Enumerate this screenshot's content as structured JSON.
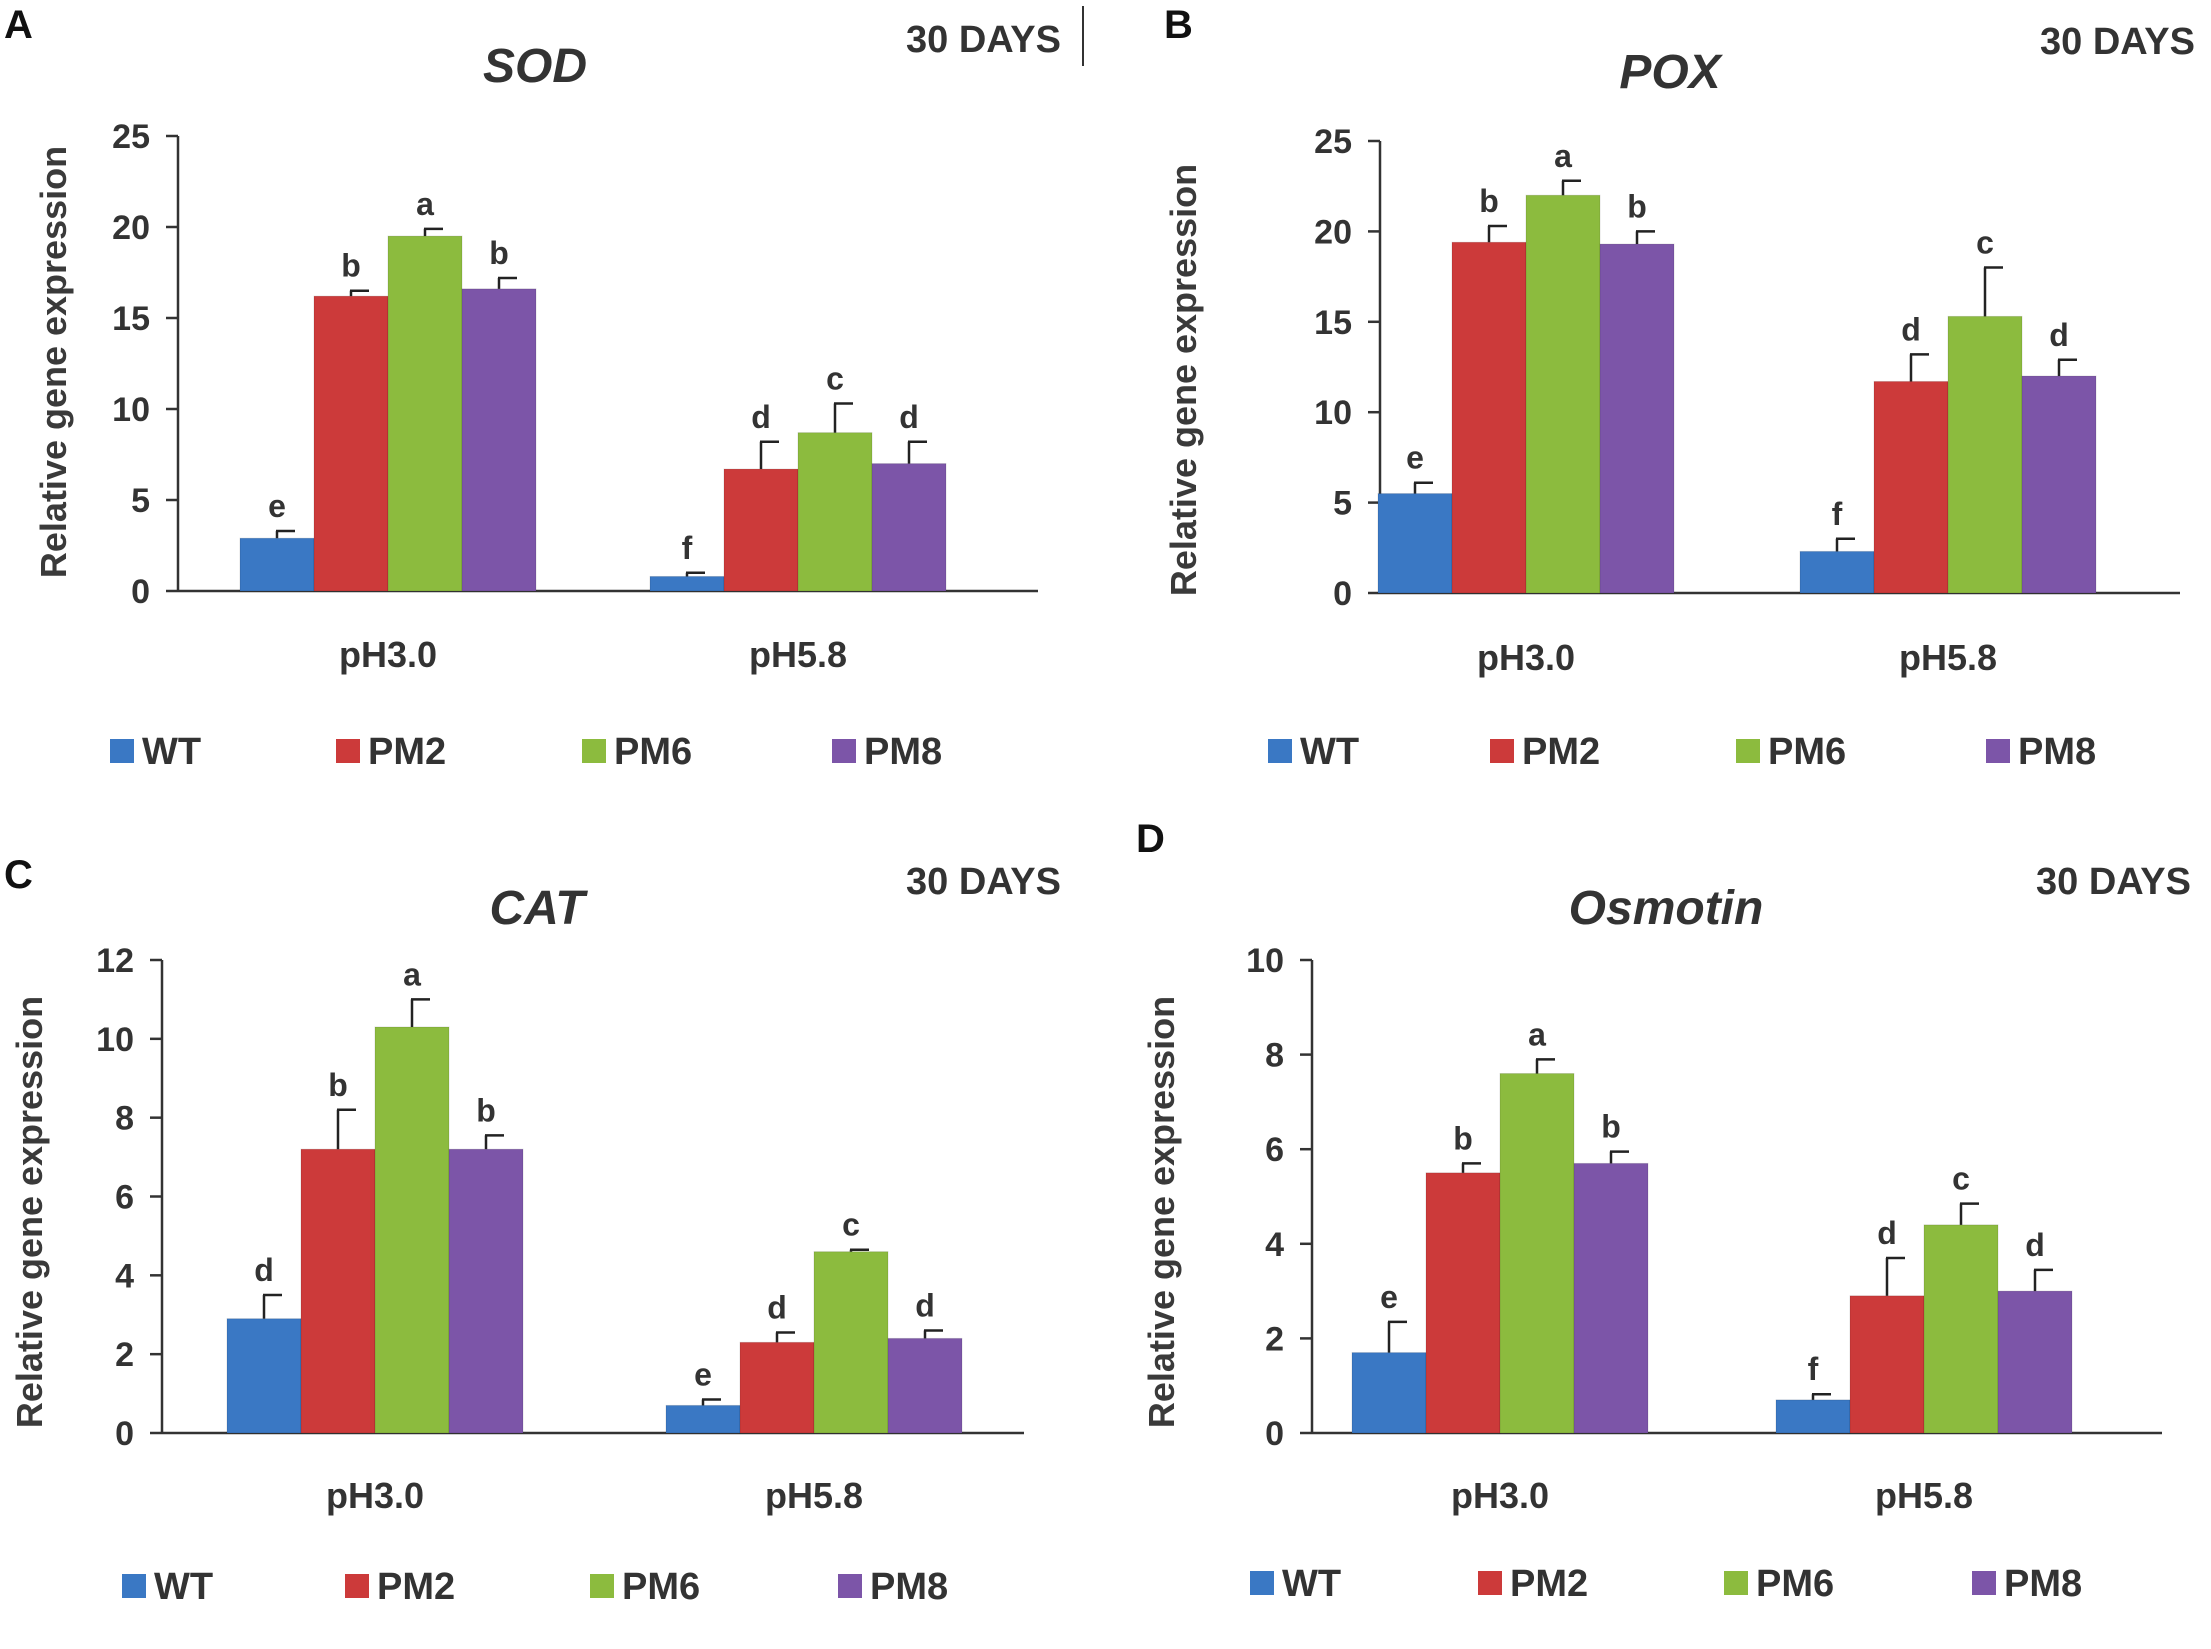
{
  "colors": {
    "WT": "#3a78c4",
    "PM2": "#cc3a3a",
    "PM6": "#8cbb3e",
    "PM8": "#7c55a8",
    "axis": "#333333"
  },
  "chart_data": [
    {
      "panel": "A",
      "type": "bar",
      "title": "SOD",
      "note": "30 DAYS",
      "ylabel": "Relative gene expression",
      "xlabel": "",
      "ylim": [
        0,
        25
      ],
      "yticks": [
        0,
        5,
        10,
        15,
        20,
        25
      ],
      "categories": [
        "pH3.0",
        "pH5.8"
      ],
      "legend_position": "bottom",
      "series": [
        {
          "name": "WT",
          "values": [
            2.9,
            0.8
          ],
          "errors": [
            0.4,
            0.2
          ],
          "letters": [
            "e",
            "f"
          ]
        },
        {
          "name": "PM2",
          "values": [
            16.2,
            6.7
          ],
          "errors": [
            0.3,
            1.5
          ],
          "letters": [
            "b",
            "d"
          ]
        },
        {
          "name": "PM6",
          "values": [
            19.5,
            8.7
          ],
          "errors": [
            0.4,
            1.6
          ],
          "letters": [
            "a",
            "c"
          ]
        },
        {
          "name": "PM8",
          "values": [
            16.6,
            7.0
          ],
          "errors": [
            0.6,
            1.2
          ],
          "letters": [
            "b",
            "d"
          ]
        }
      ]
    },
    {
      "panel": "B",
      "type": "bar",
      "title": "POX",
      "note": "30 DAYS",
      "ylabel": "Relative gene expression",
      "xlabel": "",
      "ylim": [
        0,
        25
      ],
      "yticks": [
        0,
        5,
        10,
        15,
        20,
        25
      ],
      "categories": [
        "pH3.0",
        "pH5.8"
      ],
      "legend_position": "bottom",
      "series": [
        {
          "name": "WT",
          "values": [
            5.5,
            2.3
          ],
          "errors": [
            0.6,
            0.7
          ],
          "letters": [
            "e",
            "f"
          ]
        },
        {
          "name": "PM2",
          "values": [
            19.4,
            11.7
          ],
          "errors": [
            0.9,
            1.5
          ],
          "letters": [
            "b",
            "d"
          ]
        },
        {
          "name": "PM6",
          "values": [
            22.0,
            15.3
          ],
          "errors": [
            0.8,
            2.7
          ],
          "letters": [
            "a",
            "c"
          ]
        },
        {
          "name": "PM8",
          "values": [
            19.3,
            12.0
          ],
          "errors": [
            0.7,
            0.9
          ],
          "letters": [
            "b",
            "d"
          ]
        }
      ]
    },
    {
      "panel": "C",
      "type": "bar",
      "title": "CAT",
      "note": "30 DAYS",
      "ylabel": "Relative gene expression",
      "xlabel": "",
      "ylim": [
        0,
        12
      ],
      "yticks": [
        0,
        2,
        4,
        6,
        8,
        10,
        12
      ],
      "categories": [
        "pH3.0",
        "pH5.8"
      ],
      "legend_position": "bottom",
      "series": [
        {
          "name": "WT",
          "values": [
            2.9,
            0.7
          ],
          "errors": [
            0.6,
            0.15
          ],
          "letters": [
            "d",
            "e"
          ]
        },
        {
          "name": "PM2",
          "values": [
            7.2,
            2.3
          ],
          "errors": [
            1.0,
            0.25
          ],
          "letters": [
            "b",
            "d"
          ]
        },
        {
          "name": "PM6",
          "values": [
            10.3,
            4.6
          ],
          "errors": [
            0.7,
            0.05
          ],
          "letters": [
            "a",
            "c"
          ]
        },
        {
          "name": "PM8",
          "values": [
            7.2,
            2.4
          ],
          "errors": [
            0.35,
            0.2
          ],
          "letters": [
            "b",
            "d"
          ]
        }
      ]
    },
    {
      "panel": "D",
      "type": "bar",
      "title": "Osmotin",
      "note": "30 DAYS",
      "ylabel": "Relative gene expression",
      "xlabel": "",
      "ylim": [
        0,
        10
      ],
      "yticks": [
        0,
        2,
        4,
        6,
        8,
        10
      ],
      "categories": [
        "pH3.0",
        "pH5.8"
      ],
      "legend_position": "bottom",
      "series": [
        {
          "name": "WT",
          "values": [
            1.7,
            0.7
          ],
          "errors": [
            0.65,
            0.12
          ],
          "letters": [
            "e",
            "f"
          ]
        },
        {
          "name": "PM2",
          "values": [
            5.5,
            2.9
          ],
          "errors": [
            0.2,
            0.8
          ],
          "letters": [
            "b",
            "d"
          ]
        },
        {
          "name": "PM6",
          "values": [
            7.6,
            4.4
          ],
          "errors": [
            0.3,
            0.45
          ],
          "letters": [
            "a",
            "c"
          ]
        },
        {
          "name": "PM8",
          "values": [
            5.7,
            3.0
          ],
          "errors": [
            0.25,
            0.45
          ],
          "letters": [
            "b",
            "d"
          ]
        }
      ]
    }
  ]
}
